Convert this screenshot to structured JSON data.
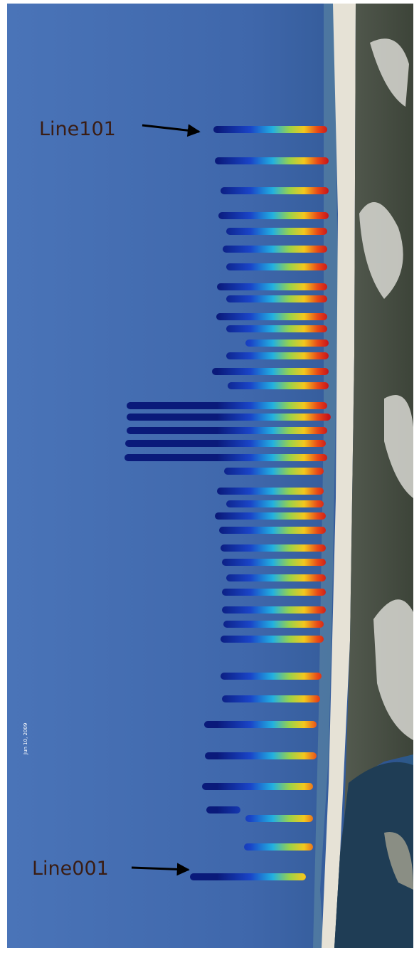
{
  "labels": {
    "top_line": "Line101",
    "bottom_line": "Line001",
    "date_stamp": "Jun 10, 2009"
  }
}
